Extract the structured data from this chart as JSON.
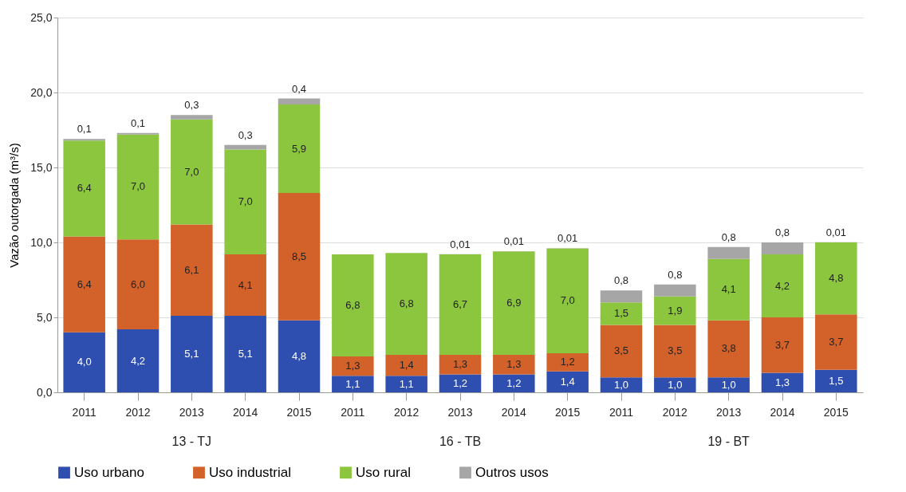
{
  "chart_data": {
    "type": "bar",
    "stacked": true,
    "ylabel": "Vazão outorgada (m³/s)",
    "categories": [
      "2011",
      "2012",
      "2013",
      "2014",
      "2015",
      "2011",
      "2012",
      "2013",
      "2014",
      "2015",
      "2011",
      "2012",
      "2013",
      "2014",
      "2015"
    ],
    "series": [
      {
        "name": "Uso urbano",
        "color": "#2e4fb0",
        "values": [
          4.0,
          4.2,
          5.1,
          5.1,
          4.8,
          1.1,
          1.1,
          1.2,
          1.2,
          1.4,
          1.0,
          1.0,
          1.0,
          1.3,
          1.5
        ],
        "value_labels": [
          "4,0",
          "4,2",
          "5,1",
          "5,1",
          "4,8",
          "1,1",
          "1,1",
          "1,2",
          "1,2",
          "1,4",
          "1,0",
          "1,0",
          "1,0",
          "1,3",
          "1,5"
        ]
      },
      {
        "name": "Uso industrial",
        "color": "#d2622a",
        "values": [
          6.4,
          6.0,
          6.1,
          4.1,
          8.5,
          1.3,
          1.4,
          1.3,
          1.3,
          1.2,
          3.5,
          3.5,
          3.8,
          3.7,
          3.7
        ],
        "value_labels": [
          "6,4",
          "6,0",
          "6,1",
          "4,1",
          "8,5",
          "1,3",
          "1,4",
          "1,3",
          "1,3",
          "1,2",
          "3,5",
          "3,5",
          "3,8",
          "3,7",
          "3,7"
        ]
      },
      {
        "name": "Uso rural",
        "color": "#8cc63f",
        "values": [
          6.4,
          7.0,
          7.0,
          7.0,
          5.9,
          6.8,
          6.8,
          6.7,
          6.9,
          7.0,
          1.5,
          1.9,
          4.1,
          4.2,
          4.8
        ],
        "value_labels": [
          "6,4",
          "7,0",
          "7,0",
          "7,0",
          "5,9",
          "6,8",
          "6,8",
          "6,7",
          "6,9",
          "7,0",
          "1,5",
          "1,9",
          "4,1",
          "4,2",
          "4,8"
        ]
      },
      {
        "name": "Outros usos",
        "color": "#a6a6a6",
        "values": [
          0.1,
          0.1,
          0.3,
          0.3,
          0.4,
          null,
          null,
          0.01,
          0.01,
          0.01,
          0.8,
          0.8,
          0.8,
          0.8,
          0.01
        ],
        "value_labels": [
          "0,1",
          "0,1",
          "0,3",
          "0,3",
          "0,4",
          null,
          null,
          "0,01",
          "0,01",
          "0,01",
          "0,8",
          "0,8",
          "0,8",
          "0,8",
          "0,01"
        ]
      }
    ],
    "ylim": [
      0,
      25
    ],
    "yticks": [
      {
        "value": 0,
        "label": "0,0"
      },
      {
        "value": 5,
        "label": "5,0"
      },
      {
        "value": 10,
        "label": "10,0"
      },
      {
        "value": 15,
        "label": "15,0"
      },
      {
        "value": 20,
        "label": "20,0"
      },
      {
        "value": 25,
        "label": "25,0"
      }
    ],
    "grid": "y",
    "legend": "bottom",
    "annotations": [
      "13 - TJ",
      "16 - TB",
      "19 - BT"
    ]
  }
}
